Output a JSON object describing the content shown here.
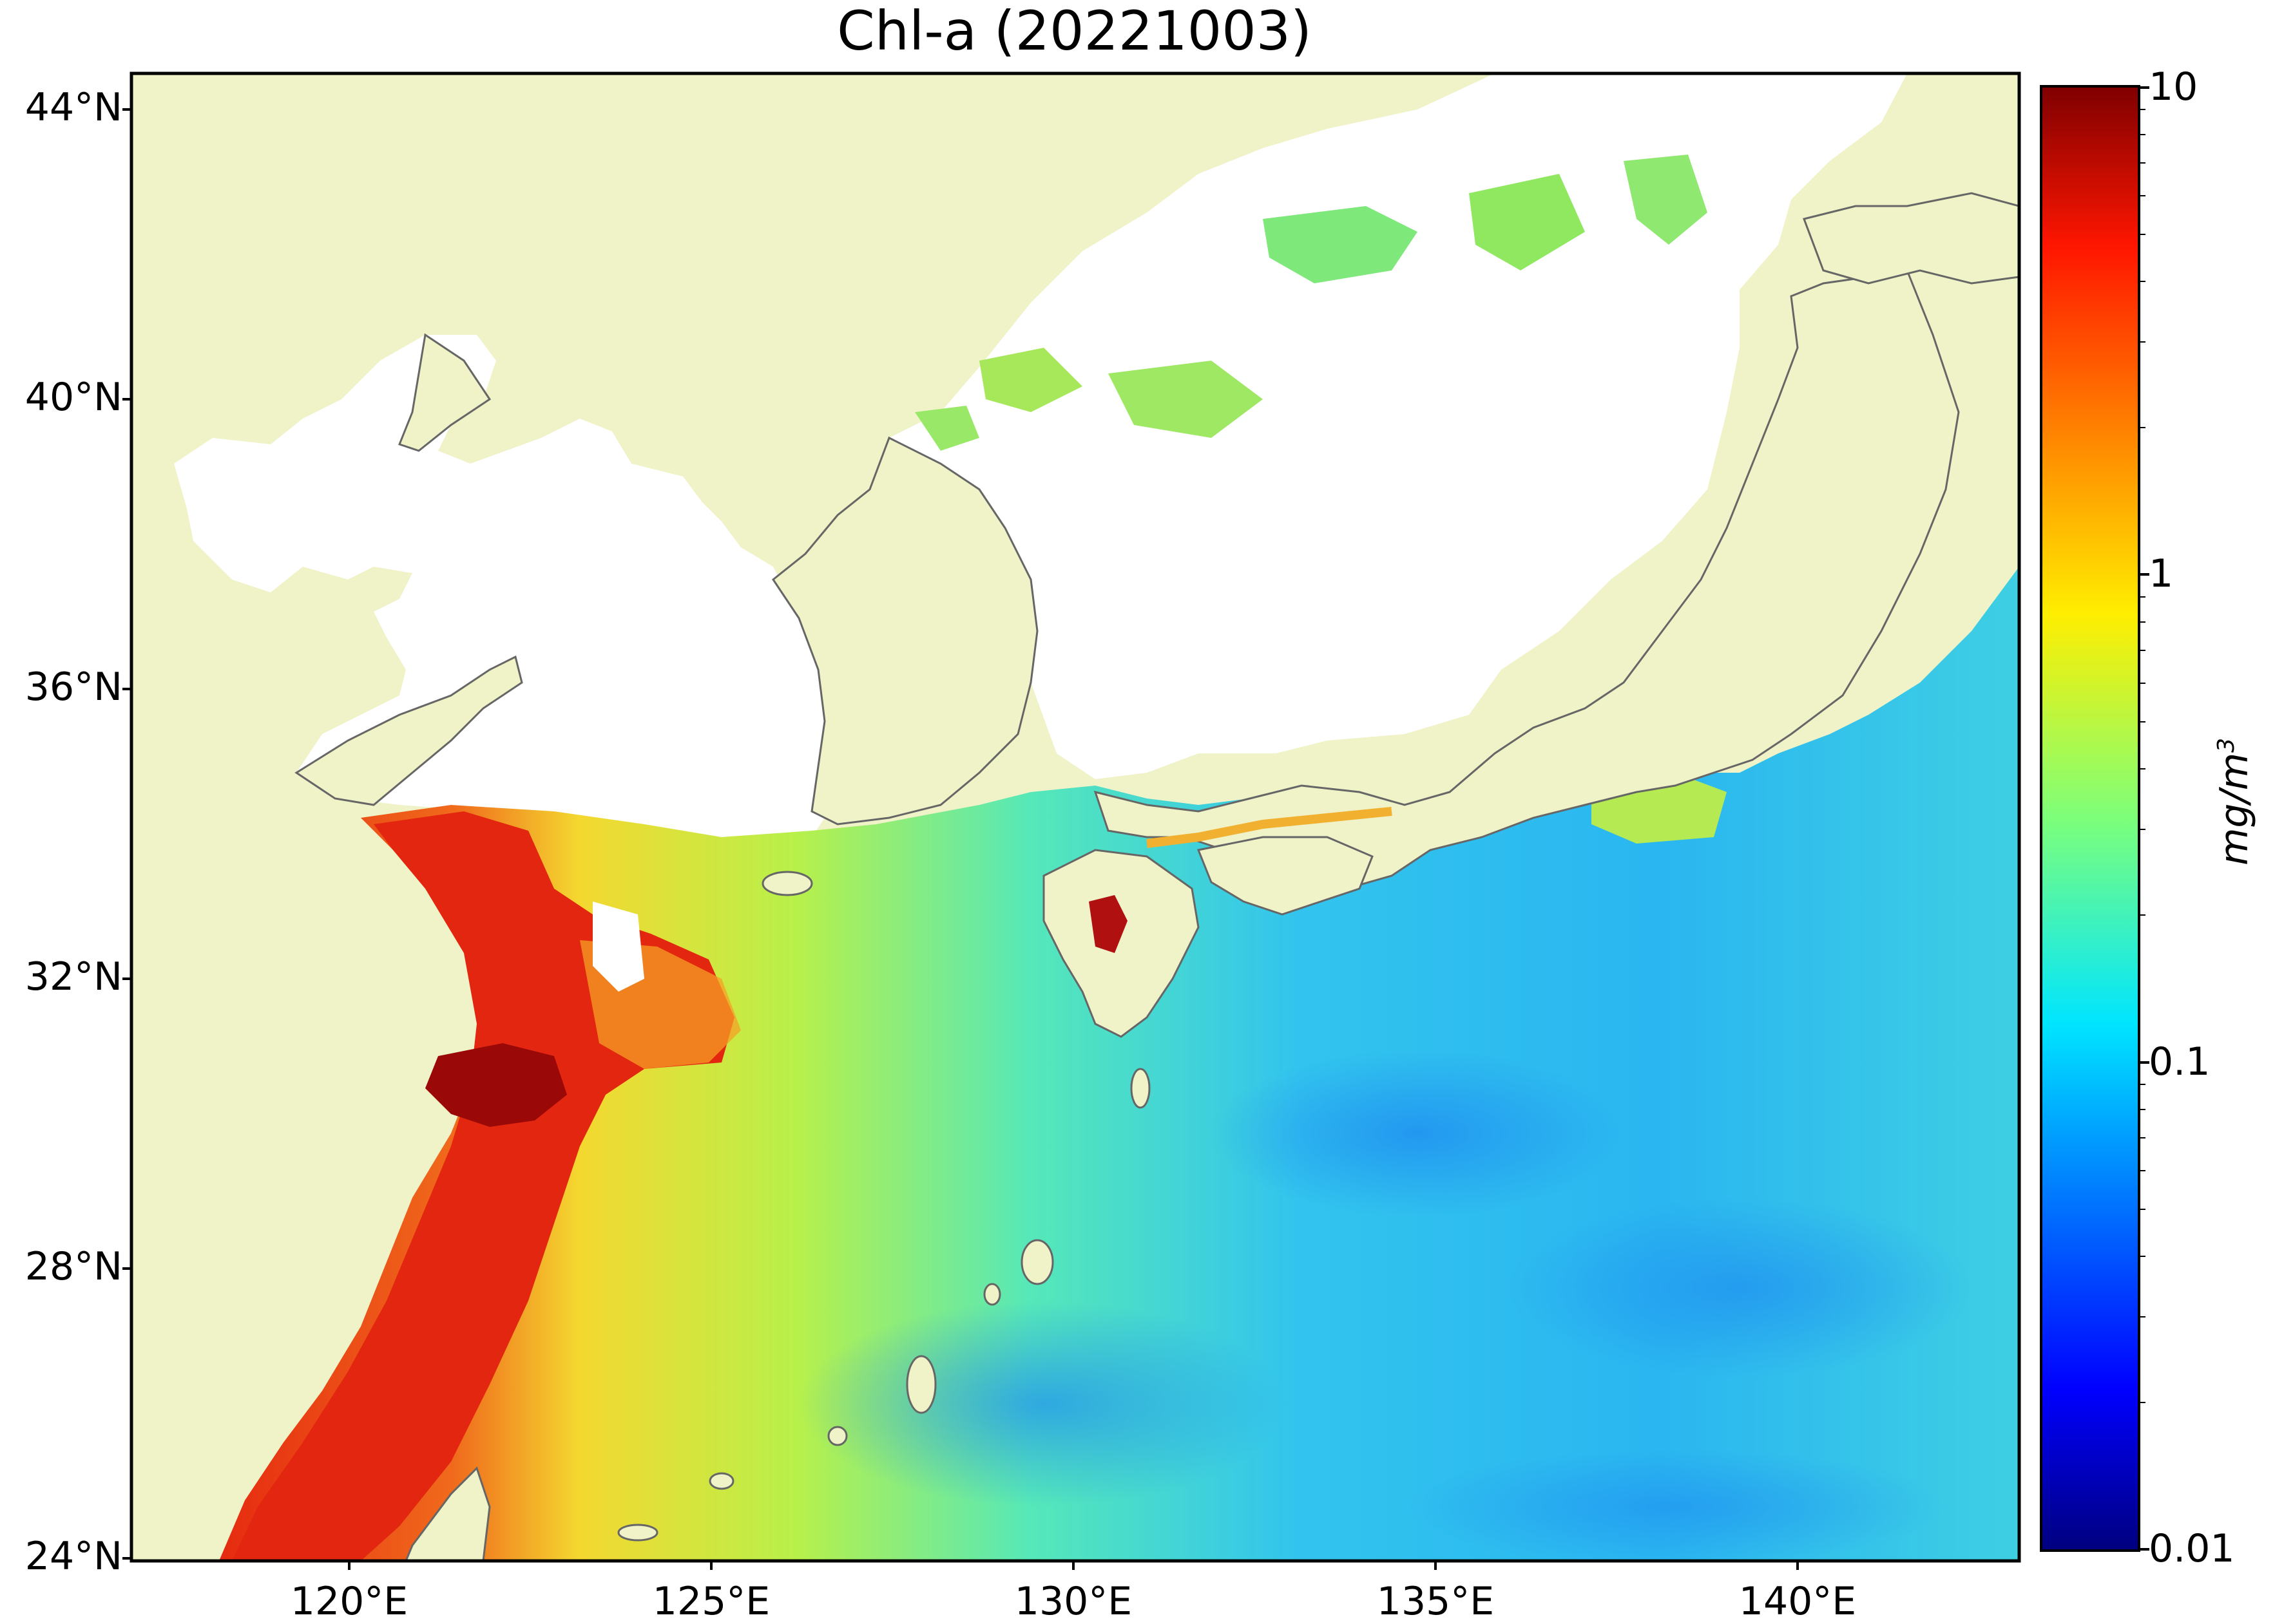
{
  "title": "Chl-a (20221003)",
  "colorbar": {
    "unit_base": "mg/m",
    "unit_exp": "3",
    "ticks": [
      "10",
      "1",
      "0.1",
      "0.01"
    ],
    "scale": "log",
    "range": [
      0.01,
      10
    ],
    "colormap": "jet"
  },
  "axes": {
    "lat_ticks": [
      "44°N",
      "40°N",
      "36°N",
      "32°N",
      "28°N",
      "24°N"
    ],
    "lon_ticks": [
      "120°E",
      "125°E",
      "130°E",
      "135°E",
      "140°E"
    ],
    "lon_range": [
      116.8,
      143.0
    ],
    "lat_range": [
      24,
      44.5
    ]
  },
  "colors": {
    "land": "#f0f2c8",
    "cloud": "#ffffff",
    "coastline": "#666666"
  }
}
